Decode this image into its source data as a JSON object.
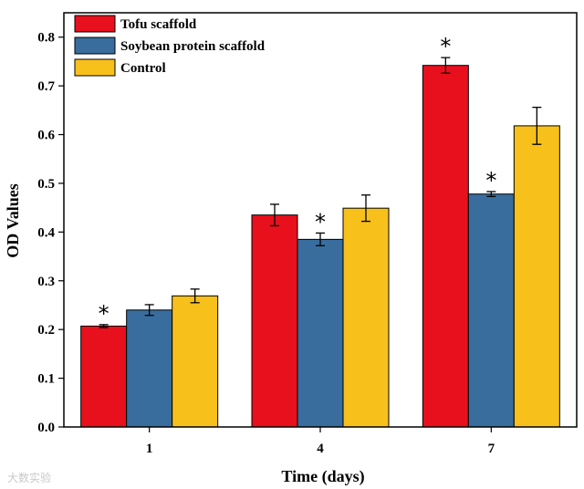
{
  "chart_data": {
    "type": "bar",
    "xlabel": "Time (days)",
    "ylabel": "OD Values",
    "ylim": [
      0,
      0.85
    ],
    "yticks": [
      "0.0",
      "0.1",
      "0.2",
      "0.3",
      "0.4",
      "0.5",
      "0.6",
      "0.7",
      "0.8"
    ],
    "categories": [
      "1",
      "4",
      "7"
    ],
    "series": [
      {
        "name": "Tofu scaffold",
        "color": "#e8101d",
        "values": [
          0.207,
          0.435,
          0.742
        ],
        "errors": [
          0.003,
          0.022,
          0.016
        ],
        "significant": [
          true,
          false,
          true
        ]
      },
      {
        "name": "Soybean protein scaffold",
        "color": "#386d9e",
        "values": [
          0.24,
          0.385,
          0.478
        ],
        "errors": [
          0.011,
          0.013,
          0.005
        ],
        "significant": [
          false,
          true,
          true
        ]
      },
      {
        "name": "Control",
        "color": "#f8c01a",
        "values": [
          0.269,
          0.449,
          0.618
        ],
        "errors": [
          0.014,
          0.027,
          0.038
        ],
        "significant": [
          false,
          false,
          false
        ]
      }
    ],
    "significance_marker": "*",
    "legend_position": "top-left"
  },
  "watermark": "大数实验"
}
